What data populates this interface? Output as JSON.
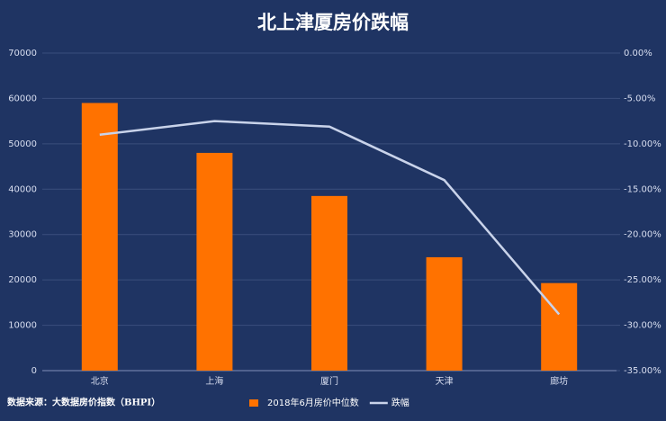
{
  "chart_data": {
    "type": "combo",
    "title": "北上津厦房价跌幅",
    "categories": [
      "北京",
      "上海",
      "厦门",
      "天津",
      "廊坊"
    ],
    "series": [
      {
        "name": "2018年6月房价中位数",
        "type": "bar",
        "color": "#ff7200",
        "values": [
          59000,
          48000,
          38500,
          25000,
          19300
        ]
      },
      {
        "name": "跌幅",
        "type": "line",
        "axis": "y2",
        "color": "#c9d3ea",
        "values": [
          -9.0,
          -7.5,
          -8.1,
          -14.0,
          -28.8
        ]
      }
    ],
    "ylim": [
      0,
      70000
    ],
    "yticks": [
      0,
      10000,
      20000,
      30000,
      40000,
      50000,
      60000,
      70000
    ],
    "y2lim": [
      -35,
      0
    ],
    "y2ticks": [
      {
        "value": 0,
        "label": "0.00%"
      },
      {
        "value": -5,
        "label": "-5.00%"
      },
      {
        "value": -10,
        "label": "-10.00%"
      },
      {
        "value": -15,
        "label": "-15.00%"
      },
      {
        "value": -20,
        "label": "-20.00%"
      },
      {
        "value": -25,
        "label": "-25.00%"
      },
      {
        "value": -30,
        "label": "-30.00%"
      },
      {
        "value": -35,
        "label": "-35.00%"
      }
    ],
    "grid": true,
    "source": "数据来源：大数据房价指数（BHPI）"
  }
}
